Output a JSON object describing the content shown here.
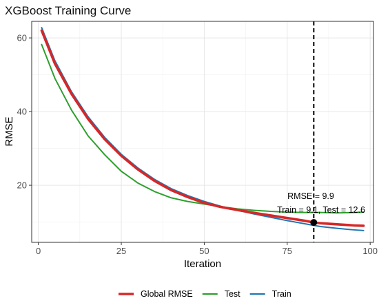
{
  "chart_data": {
    "type": "line",
    "title": "XGBoost Training Curve",
    "xlabel": "Iteration",
    "ylabel": "RMSE",
    "xlim": [
      -2,
      101
    ],
    "ylim": [
      4.5,
      64.5
    ],
    "xticks": [
      0,
      25,
      50,
      75,
      100
    ],
    "yticks": [
      20,
      40,
      60
    ],
    "grid": true,
    "legend_position": "bottom",
    "x": [
      1,
      5,
      10,
      15,
      20,
      25,
      30,
      35,
      40,
      45,
      50,
      55,
      60,
      65,
      70,
      75,
      80,
      83,
      85,
      90,
      95,
      98
    ],
    "series": [
      {
        "name": "Global RMSE",
        "color": "#d62728",
        "values": [
          62.0,
          53.0,
          44.8,
          38.0,
          32.5,
          28.0,
          24.3,
          21.2,
          18.7,
          16.8,
          15.2,
          14.1,
          13.3,
          12.5,
          11.8,
          11.1,
          10.4,
          9.9,
          9.7,
          9.4,
          9.1,
          9.0
        ]
      },
      {
        "name": "Test",
        "color": "#2ca02c",
        "values": [
          58.2,
          49.0,
          40.4,
          33.4,
          28.3,
          23.8,
          20.6,
          18.3,
          16.6,
          15.6,
          14.9,
          14.2,
          13.6,
          13.2,
          12.9,
          12.7,
          12.6,
          12.6,
          12.6,
          12.5,
          12.6,
          12.7
        ]
      },
      {
        "name": "Train",
        "color": "#1f77b4",
        "values": [
          62.8,
          53.8,
          45.4,
          38.6,
          33.0,
          28.4,
          24.7,
          21.6,
          19.1,
          17.2,
          15.6,
          14.3,
          13.2,
          12.2,
          11.3,
          10.4,
          9.6,
          9.1,
          8.8,
          8.3,
          7.9,
          7.7
        ]
      }
    ],
    "vline": {
      "x": 83
    },
    "highlight_point": {
      "x": 83,
      "y": 9.9
    },
    "annotation_lines": [
      "RMSE = 9.9",
      "Train = 9.1, Test = 12.6"
    ]
  }
}
